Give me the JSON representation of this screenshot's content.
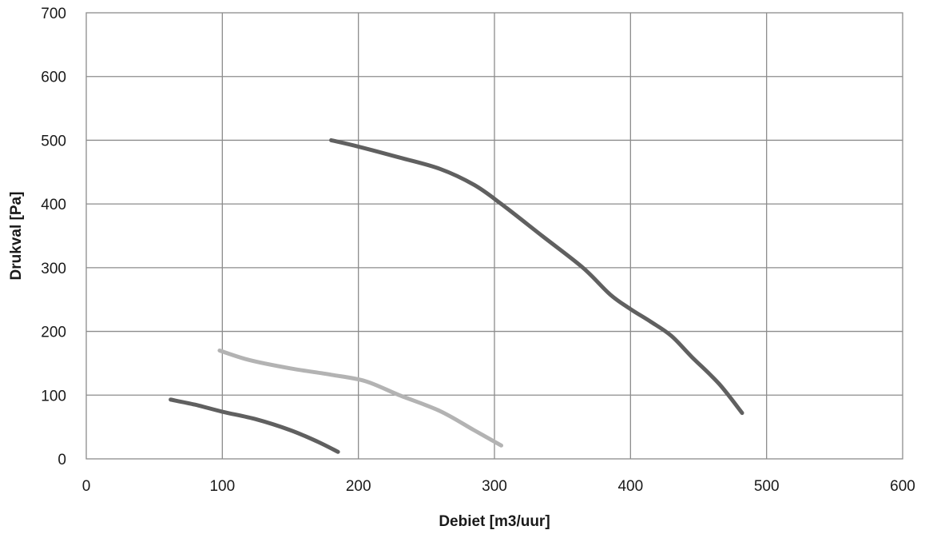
{
  "chart_data": {
    "type": "line",
    "title": "",
    "xlabel": "Debiet [m3/uur]",
    "ylabel": "Drukval [Pa]",
    "xlim": [
      0,
      600
    ],
    "ylim": [
      0,
      700
    ],
    "xticks": [
      0,
      100,
      200,
      300,
      400,
      500,
      600
    ],
    "yticks": [
      0,
      100,
      200,
      300,
      400,
      500,
      600,
      700
    ],
    "grid": true,
    "legend": "none",
    "series": [
      {
        "color": "#606060",
        "points": [
          [
            180,
            500
          ],
          [
            200,
            490
          ],
          [
            230,
            473
          ],
          [
            260,
            455
          ],
          [
            285,
            430
          ],
          [
            305,
            400
          ],
          [
            335,
            350
          ],
          [
            365,
            300
          ],
          [
            385,
            258
          ],
          [
            400,
            235
          ],
          [
            415,
            215
          ],
          [
            430,
            193
          ],
          [
            445,
            160
          ],
          [
            465,
            118
          ],
          [
            482,
            72
          ]
        ]
      },
      {
        "color": "#b3b3b3",
        "points": [
          [
            98,
            170
          ],
          [
            120,
            155
          ],
          [
            150,
            142
          ],
          [
            180,
            132
          ],
          [
            205,
            122
          ],
          [
            230,
            100
          ],
          [
            260,
            75
          ],
          [
            285,
            45
          ],
          [
            305,
            21
          ]
        ]
      },
      {
        "color": "#606060",
        "points": [
          [
            62,
            93
          ],
          [
            80,
            85
          ],
          [
            100,
            74
          ],
          [
            125,
            62
          ],
          [
            150,
            45
          ],
          [
            170,
            27
          ],
          [
            185,
            11
          ]
        ]
      }
    ]
  }
}
